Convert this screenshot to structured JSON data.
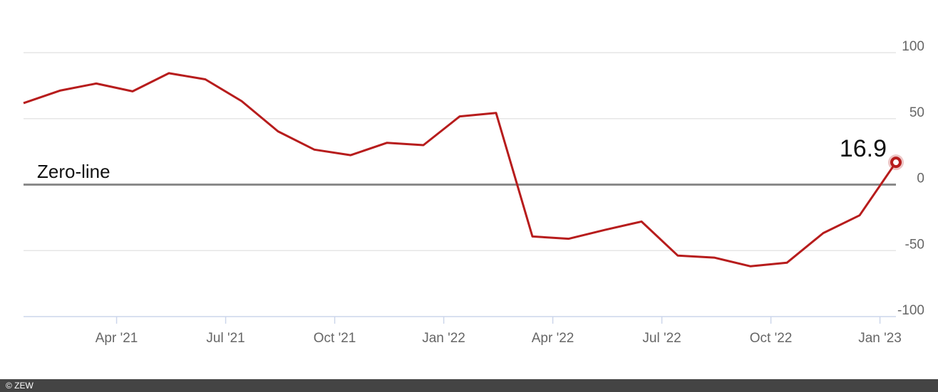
{
  "chart_data": {
    "type": "line",
    "x": [
      "2021-01",
      "2021-02",
      "2021-03",
      "2021-04",
      "2021-05",
      "2021-06",
      "2021-07",
      "2021-08",
      "2021-09",
      "2021-10",
      "2021-11",
      "2021-12",
      "2022-01",
      "2022-02",
      "2022-03",
      "2022-04",
      "2022-05",
      "2022-06",
      "2022-07",
      "2022-08",
      "2022-09",
      "2022-10",
      "2022-11",
      "2022-12",
      "2023-01"
    ],
    "series": [
      {
        "color": "#b71c1c",
        "values": [
          61.8,
          71.2,
          76.6,
          70.7,
          84.4,
          79.8,
          63.3,
          40.4,
          26.5,
          22.3,
          31.7,
          29.9,
          51.7,
          54.3,
          -39.3,
          -41.0,
          -34.3,
          -28.0,
          -53.8,
          -55.3,
          -61.9,
          -59.2,
          -36.7,
          -23.3,
          16.9
        ]
      }
    ],
    "xlim": [
      "2021-01",
      "2023-01"
    ],
    "xticks": [
      {
        "value": "2021-04",
        "label": "Apr '21"
      },
      {
        "value": "2021-07",
        "label": "Jul '21"
      },
      {
        "value": "2021-10",
        "label": "Oct '21"
      },
      {
        "value": "2022-01",
        "label": "Jan '22"
      },
      {
        "value": "2022-04",
        "label": "Apr '22"
      },
      {
        "value": "2022-07",
        "label": "Jul '22"
      },
      {
        "value": "2022-10",
        "label": "Oct '22"
      },
      {
        "value": "2023-01",
        "label": "Jan '23"
      }
    ],
    "ylim": [
      -100,
      100
    ],
    "yticks": [
      -100,
      -50,
      0,
      50,
      100
    ],
    "grid": true,
    "annotation": "Zero-line",
    "source": "© ZEW"
  }
}
